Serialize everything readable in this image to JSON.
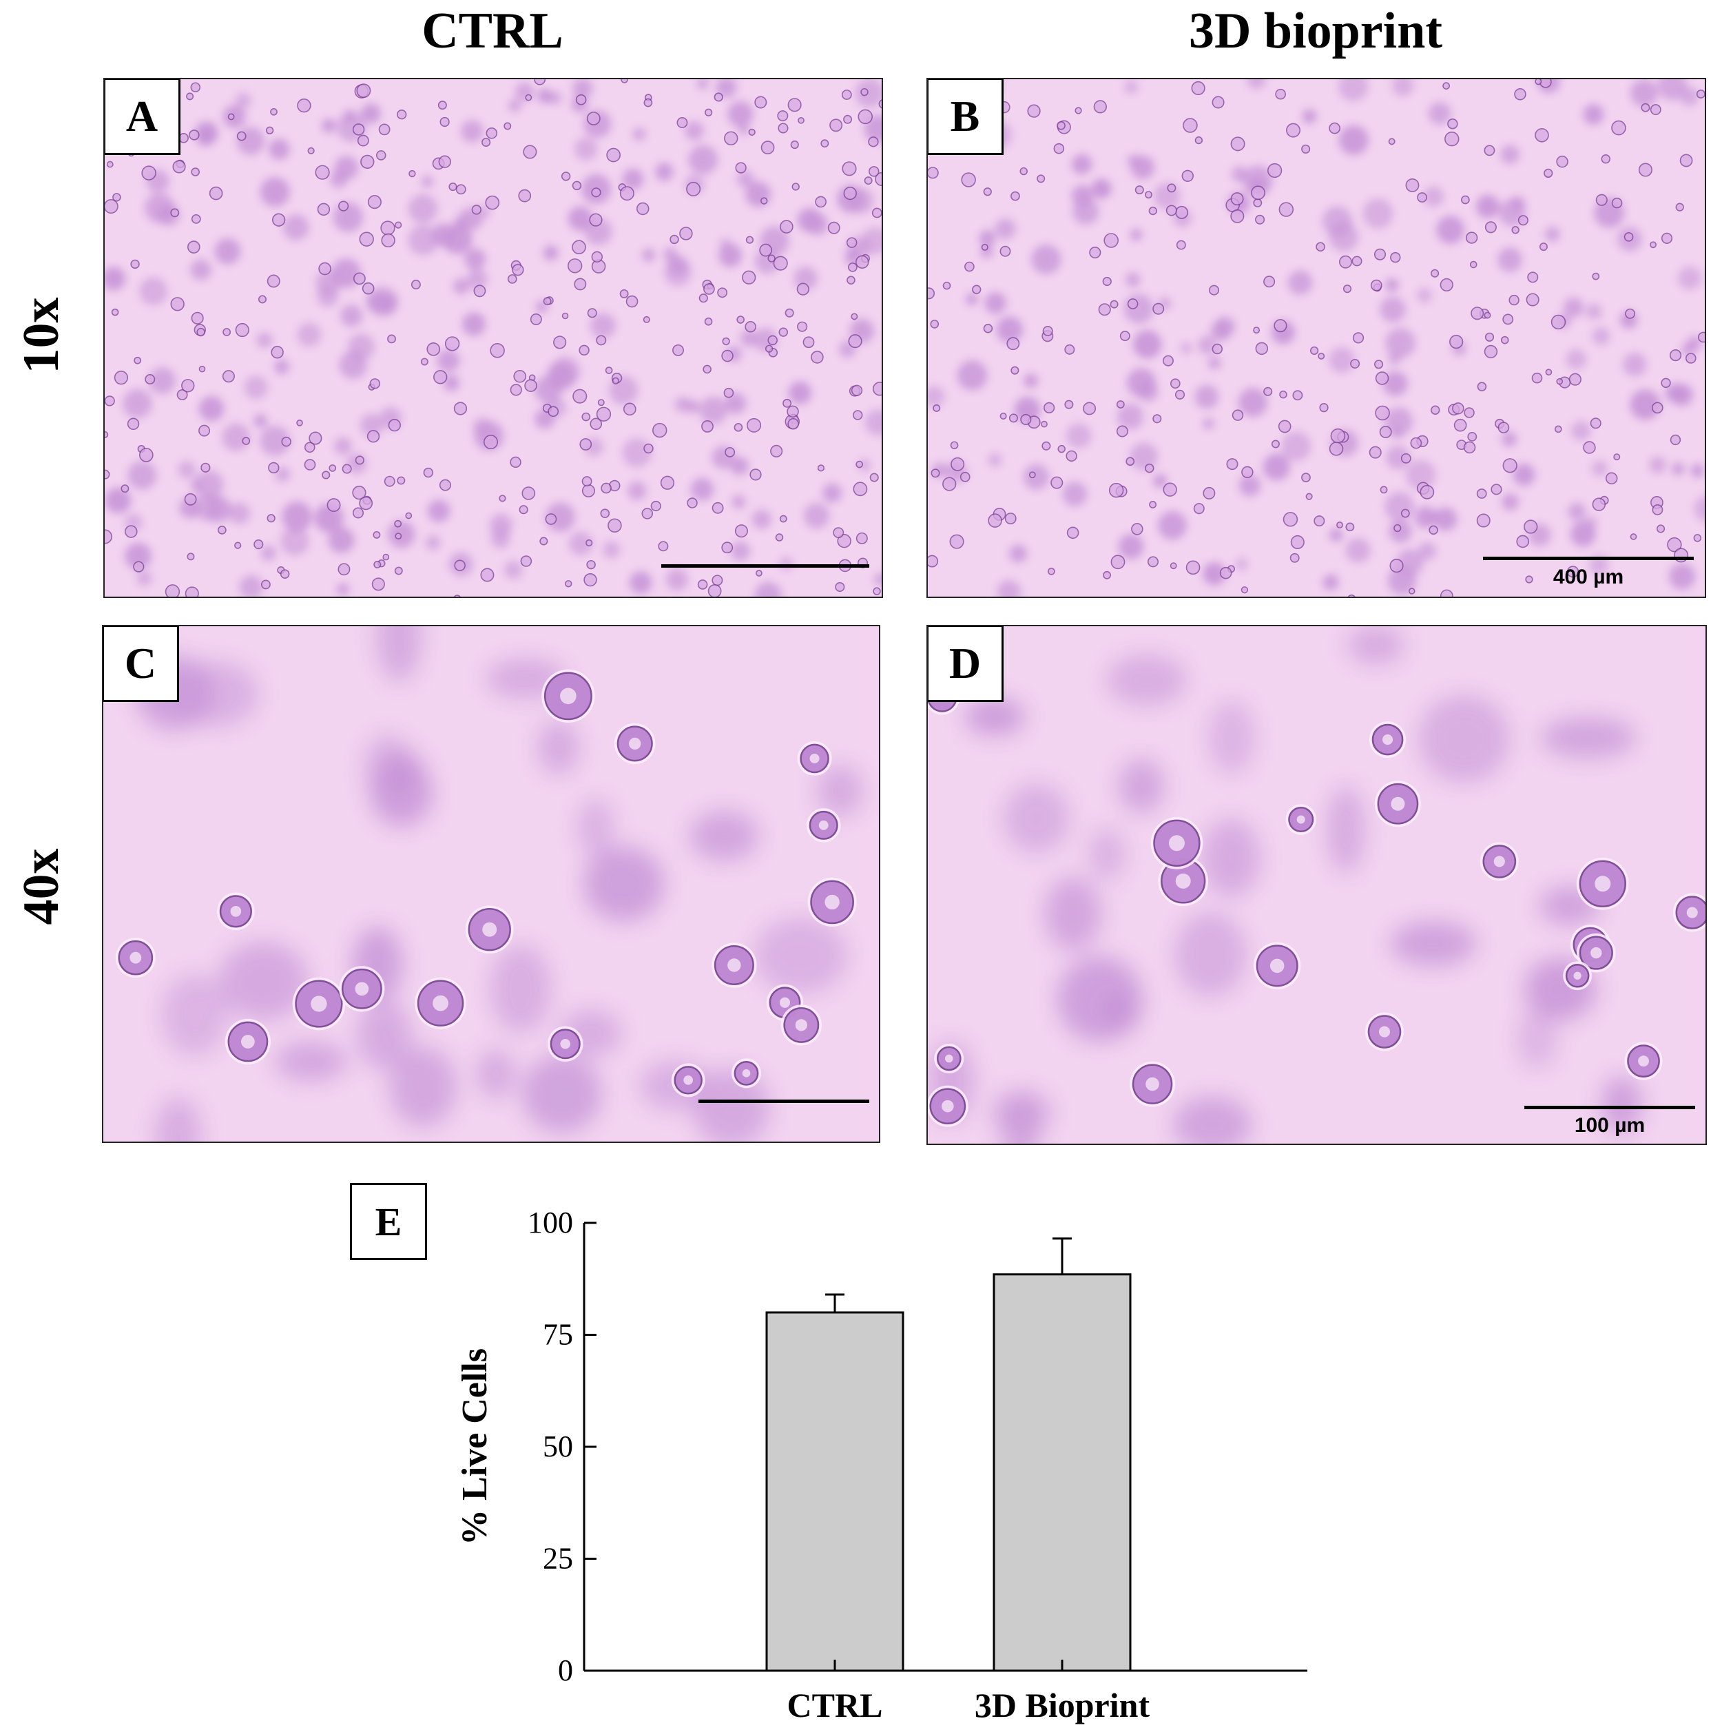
{
  "headers": {
    "col_ctrl": "CTRL",
    "col_bioprint": "3D bioprint",
    "row_10x": "10x",
    "row_40x": "40x"
  },
  "panels": {
    "A": {
      "label": "A",
      "scale_text": ""
    },
    "B": {
      "label": "B",
      "scale_text": "400 µm"
    },
    "C": {
      "label": "C",
      "scale_text": ""
    },
    "D": {
      "label": "D",
      "scale_text": "100 µm"
    }
  },
  "colors": {
    "micrograph_background": "#f2d3f0",
    "cell_stain": "#a360c4",
    "bar_fill": "#cccccc"
  },
  "chart_label": "E",
  "chart_data": {
    "type": "bar",
    "categories": [
      "CTRL",
      "3D Bioprint"
    ],
    "values": [
      80,
      88.5
    ],
    "error": [
      4,
      8
    ],
    "ylabel": "% Live Cells",
    "xlabel": "",
    "ylim": [
      0,
      100
    ],
    "yticks": [
      0,
      25,
      50,
      75,
      100
    ],
    "grid": false,
    "legend": "none"
  }
}
